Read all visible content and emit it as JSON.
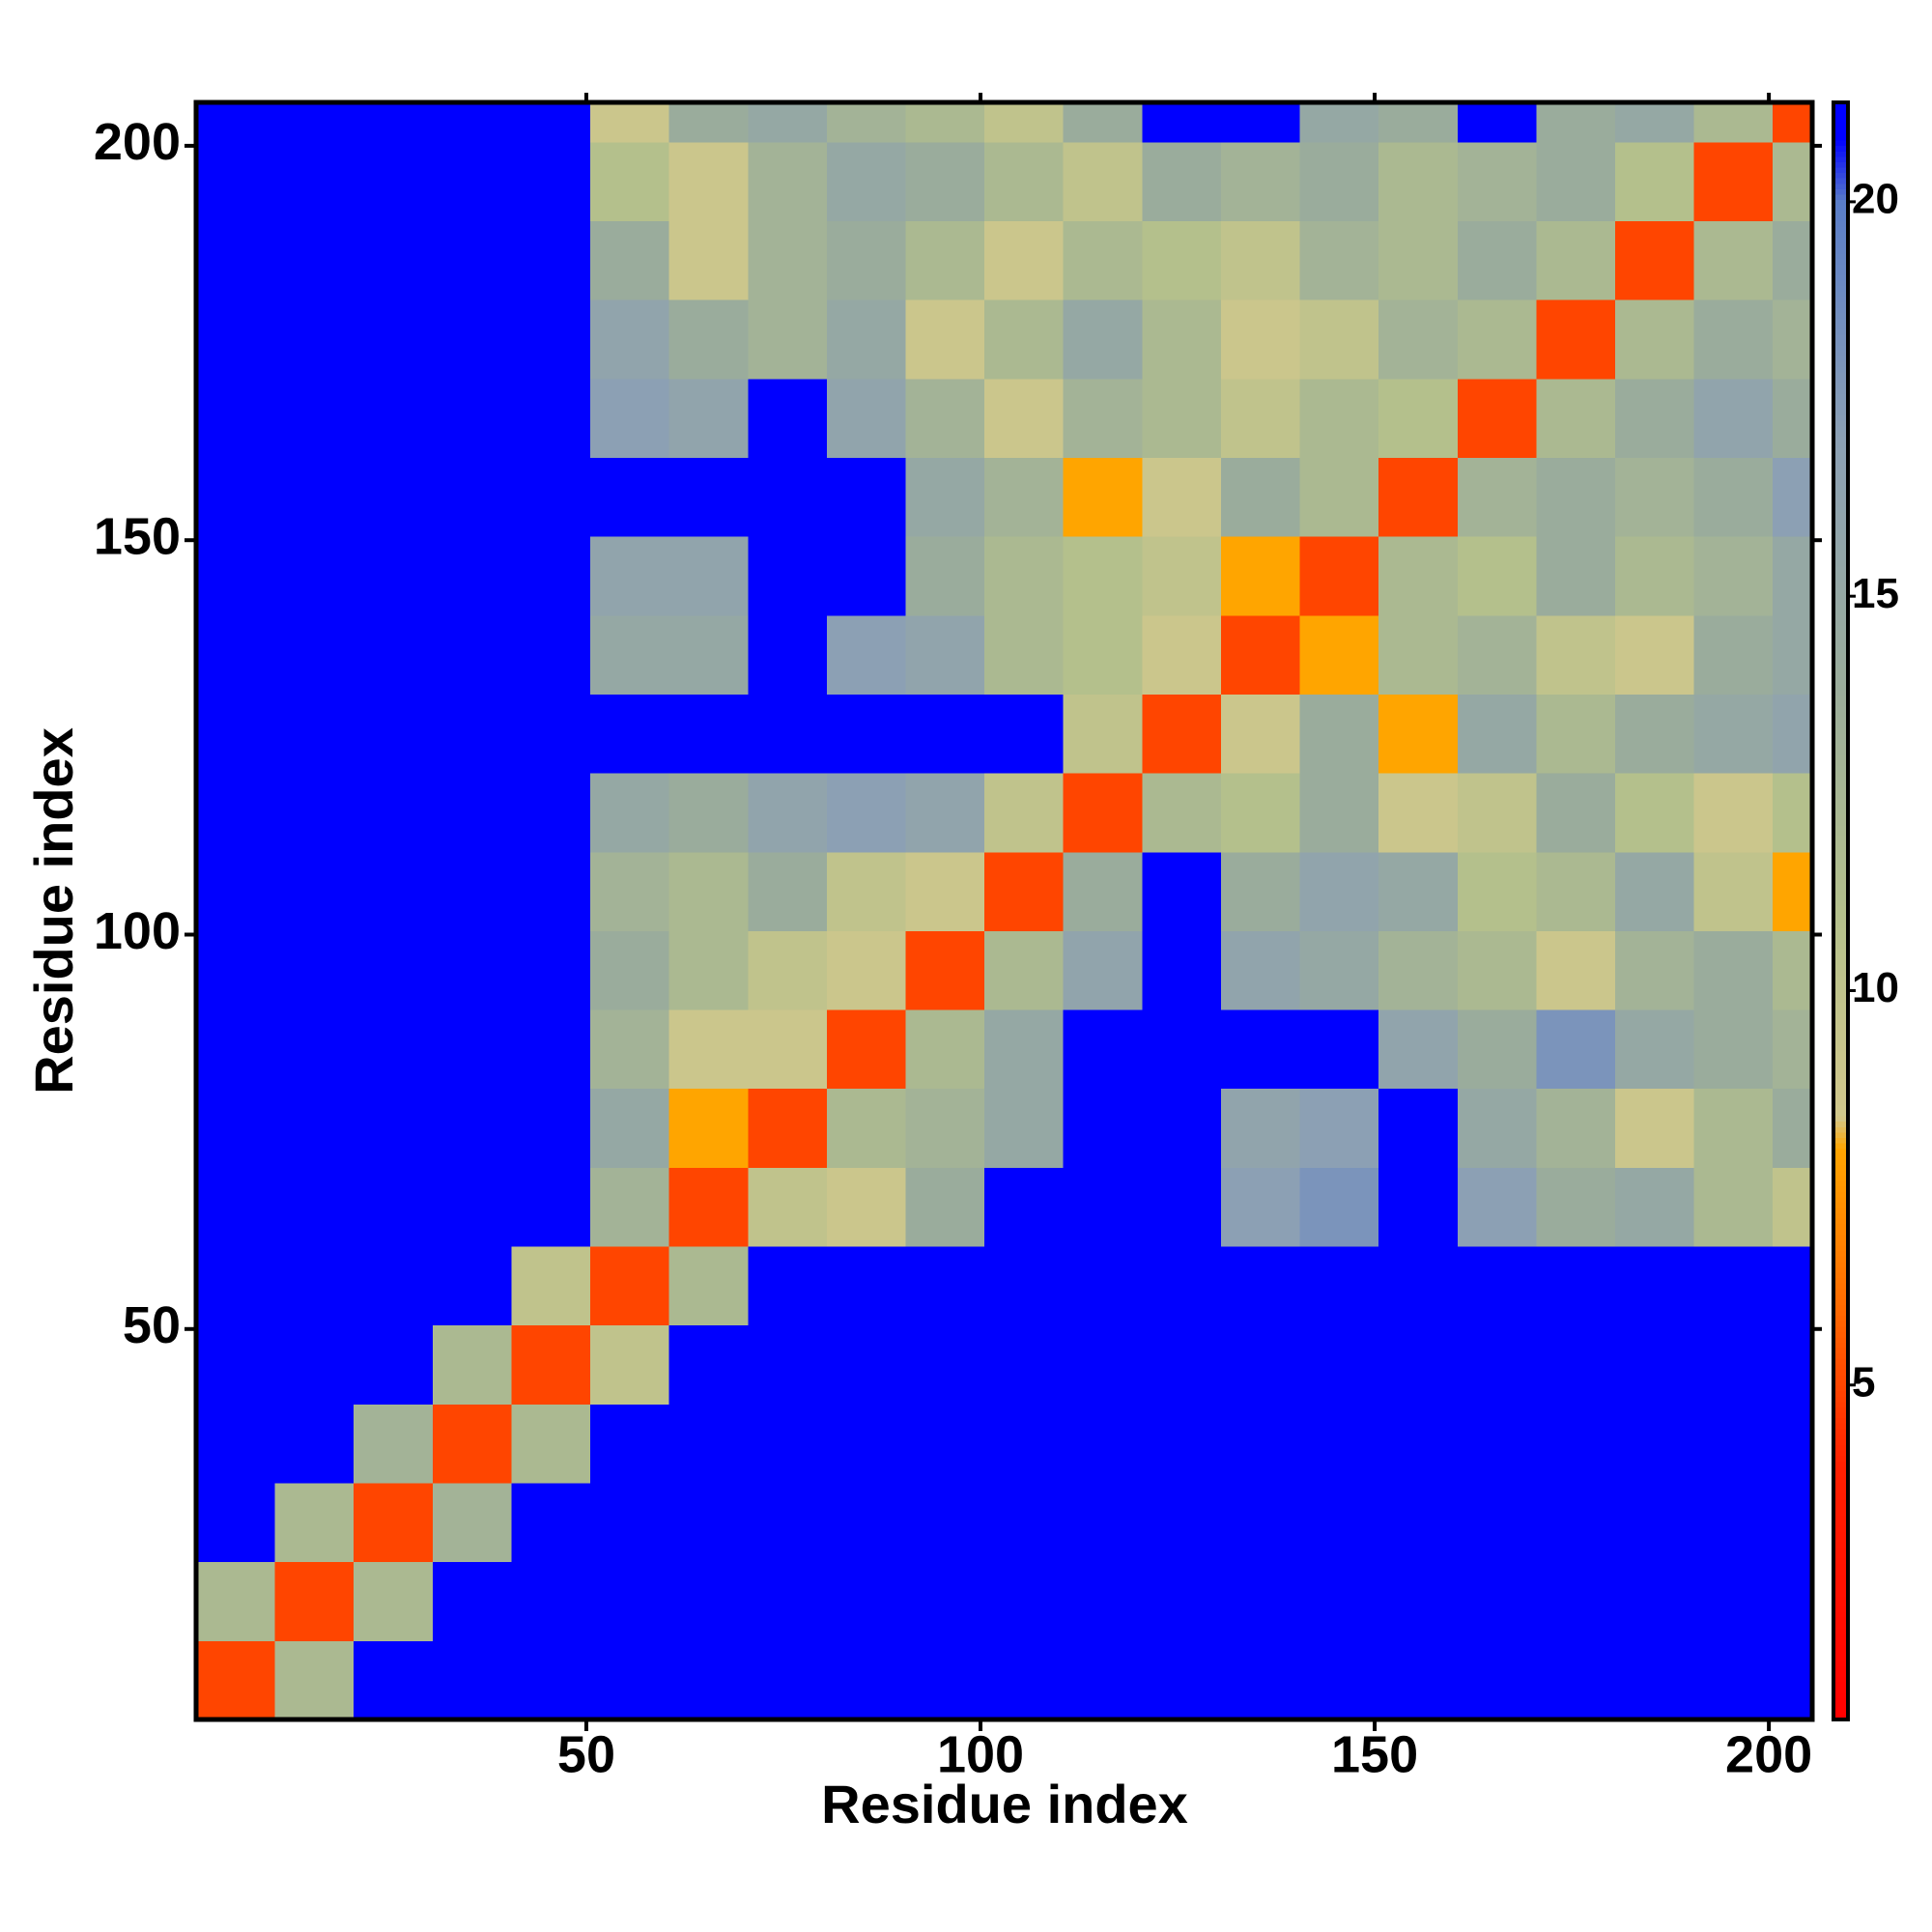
{
  "chart_data": {
    "type": "heatmap",
    "x_label": "Residue index",
    "y_label": "Residue index",
    "x_edges": [
      0.5,
      10.5,
      20.5,
      30.5,
      40.5,
      50.5,
      60.5,
      70.5,
      80.5,
      90.5,
      100.5,
      110.5,
      120.5,
      130.5,
      140.5,
      150.5,
      160.5,
      170.5,
      180.5,
      190.5,
      200.5,
      205.5
    ],
    "y_edges": [
      0.5,
      10.5,
      20.5,
      30.5,
      40.5,
      50.5,
      60.5,
      70.5,
      80.5,
      90.5,
      100.5,
      110.5,
      120.5,
      130.5,
      140.5,
      150.5,
      160.5,
      170.5,
      180.5,
      190.5,
      200.5,
      205.5
    ],
    "values": [
      [
        5,
        12,
        21,
        21,
        21,
        21,
        21,
        21,
        21,
        21,
        21,
        21,
        21,
        21,
        21,
        21,
        21,
        21,
        21,
        21,
        21
      ],
      [
        12,
        5,
        12,
        21,
        21,
        21,
        21,
        21,
        21,
        21,
        21,
        21,
        21,
        21,
        21,
        21,
        21,
        21,
        21,
        21,
        21
      ],
      [
        21,
        12,
        5,
        13,
        21,
        21,
        21,
        21,
        21,
        21,
        21,
        21,
        21,
        21,
        21,
        21,
        21,
        21,
        21,
        21,
        21
      ],
      [
        21,
        21,
        13,
        5,
        12,
        21,
        21,
        21,
        21,
        21,
        21,
        21,
        21,
        21,
        21,
        21,
        21,
        21,
        21,
        21,
        21
      ],
      [
        21,
        21,
        21,
        12,
        5,
        10,
        21,
        21,
        21,
        21,
        21,
        21,
        21,
        21,
        21,
        21,
        21,
        21,
        21,
        21,
        21
      ],
      [
        21,
        21,
        21,
        21,
        10,
        5,
        12,
        21,
        21,
        21,
        21,
        21,
        21,
        21,
        21,
        21,
        21,
        21,
        21,
        21,
        21
      ],
      [
        21,
        21,
        21,
        21,
        21,
        13,
        5,
        10,
        9,
        14,
        21,
        21,
        21,
        17,
        18,
        21,
        17,
        14,
        15,
        12,
        10
      ],
      [
        21,
        21,
        21,
        21,
        21,
        15,
        8,
        5,
        12,
        13,
        15,
        21,
        21,
        16,
        17,
        21,
        15,
        13,
        9,
        12,
        14
      ],
      [
        21,
        21,
        21,
        21,
        21,
        13,
        9,
        9,
        5,
        12,
        15,
        21,
        21,
        21,
        21,
        16,
        14,
        18,
        15,
        14,
        13
      ],
      [
        21,
        21,
        21,
        21,
        21,
        14,
        12,
        10,
        9,
        5,
        12,
        16,
        21,
        16,
        15,
        13,
        12,
        9,
        13,
        14,
        12
      ],
      [
        21,
        21,
        21,
        21,
        21,
        13,
        12,
        14,
        10,
        9,
        5,
        14,
        21,
        14,
        16,
        15,
        11,
        12,
        15,
        10,
        8
      ],
      [
        21,
        21,
        21,
        21,
        21,
        15,
        14,
        16,
        17,
        16,
        10,
        5,
        12,
        11,
        14,
        9,
        10,
        14,
        11,
        9,
        11
      ],
      [
        21,
        21,
        21,
        21,
        21,
        21,
        21,
        21,
        21,
        21,
        21,
        10,
        5,
        9,
        14,
        8,
        15,
        12,
        14,
        15,
        16
      ],
      [
        21,
        21,
        21,
        21,
        21,
        15,
        15,
        21,
        17,
        16,
        12,
        11,
        9,
        5,
        8,
        12,
        13,
        10,
        9,
        14,
        15
      ],
      [
        21,
        21,
        21,
        21,
        21,
        16,
        16,
        21,
        21,
        14,
        12,
        11,
        10,
        8,
        5,
        12,
        11,
        14,
        12,
        13,
        15
      ],
      [
        21,
        21,
        21,
        21,
        21,
        21,
        21,
        21,
        21,
        15,
        13,
        8,
        9,
        14,
        12,
        5,
        13,
        14,
        13,
        14,
        17
      ],
      [
        21,
        21,
        21,
        21,
        21,
        17,
        16,
        21,
        16,
        13,
        9,
        13,
        12,
        10,
        12,
        11,
        5,
        12,
        14,
        16,
        14
      ],
      [
        21,
        21,
        21,
        21,
        21,
        16,
        14,
        13,
        15,
        9,
        12,
        15,
        12,
        9,
        10,
        13,
        12,
        5,
        12,
        14,
        13
      ],
      [
        21,
        21,
        21,
        21,
        21,
        14,
        9,
        13,
        14,
        12,
        9,
        12,
        11,
        10,
        13,
        12,
        14,
        12,
        5,
        12,
        14
      ],
      [
        21,
        21,
        21,
        21,
        21,
        11,
        9,
        13,
        15,
        14,
        12,
        10,
        14,
        13,
        14,
        12,
        13,
        14,
        11,
        5,
        12
      ],
      [
        21,
        21,
        21,
        21,
        21,
        9,
        14,
        15,
        13,
        12,
        10,
        14,
        21,
        21,
        15,
        14,
        21,
        14,
        15,
        12,
        5
      ]
    ],
    "xlim": [
      0.5,
      205.5
    ],
    "ylim": [
      0.5,
      205.5
    ],
    "xticks": [
      50,
      100,
      150,
      200
    ],
    "yticks": [
      50,
      100,
      150,
      200
    ],
    "clim": [
      0.76,
      21.26
    ],
    "cticks": [
      5,
      10,
      15,
      20
    ],
    "color_stops": [
      [
        0.76,
        "#ff0000"
      ],
      [
        4,
        "#ff2000"
      ],
      [
        6,
        "#ff6a00"
      ],
      [
        8,
        "#ffa500"
      ],
      [
        8.4,
        "#d2c88c"
      ],
      [
        11,
        "#b4c08c"
      ],
      [
        14,
        "#9aac9c"
      ],
      [
        17,
        "#8ca0b4"
      ],
      [
        20,
        "#5a7dc8"
      ],
      [
        20.8,
        "#0000ff"
      ],
      [
        21.26,
        "#0000ff"
      ]
    ]
  }
}
